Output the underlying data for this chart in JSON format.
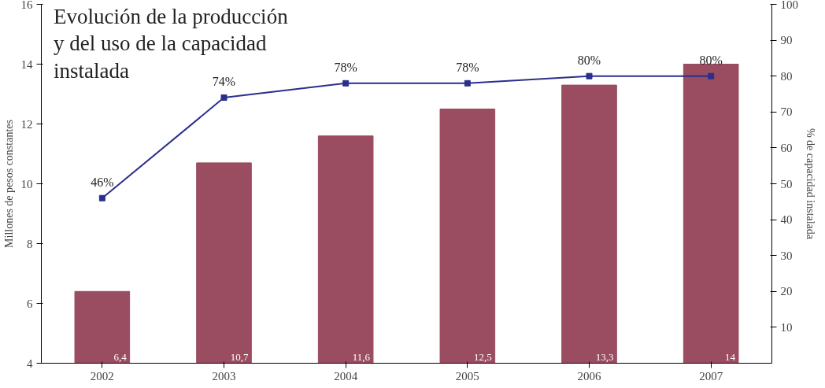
{
  "chart_data": {
    "type": "bar",
    "title": "Evolución de la producción y del uso de la capacidad instalada",
    "categories": [
      "2002",
      "2003",
      "2004",
      "2005",
      "2006",
      "2007"
    ],
    "ylabel": "Millones de pesos constantes",
    "y2label": "% de capacidad instalada",
    "ylim": [
      4,
      16
    ],
    "yticks": [
      4,
      6,
      8,
      10,
      12,
      14,
      16
    ],
    "y2lim": [
      0,
      100
    ],
    "y2ticks": [
      10,
      20,
      30,
      40,
      50,
      60,
      70,
      80,
      90,
      100
    ],
    "series": [
      {
        "color": "#9a4c60",
        "values": [
          6.4,
          10.7,
          11.6,
          12.5,
          13.3,
          14
        ],
        "value_labels": [
          "6,4",
          "10,7",
          "11,6",
          "12,5",
          "13,3",
          "14"
        ]
      },
      {
        "type": "line",
        "axis": "y2",
        "color": "#2b2f8c",
        "marker": "square",
        "values": [
          46,
          74,
          78,
          78,
          80,
          80
        ],
        "value_labels": [
          "46%",
          "74%",
          "78%",
          "78%",
          "80%",
          "80%"
        ]
      }
    ],
    "grid": false
  }
}
